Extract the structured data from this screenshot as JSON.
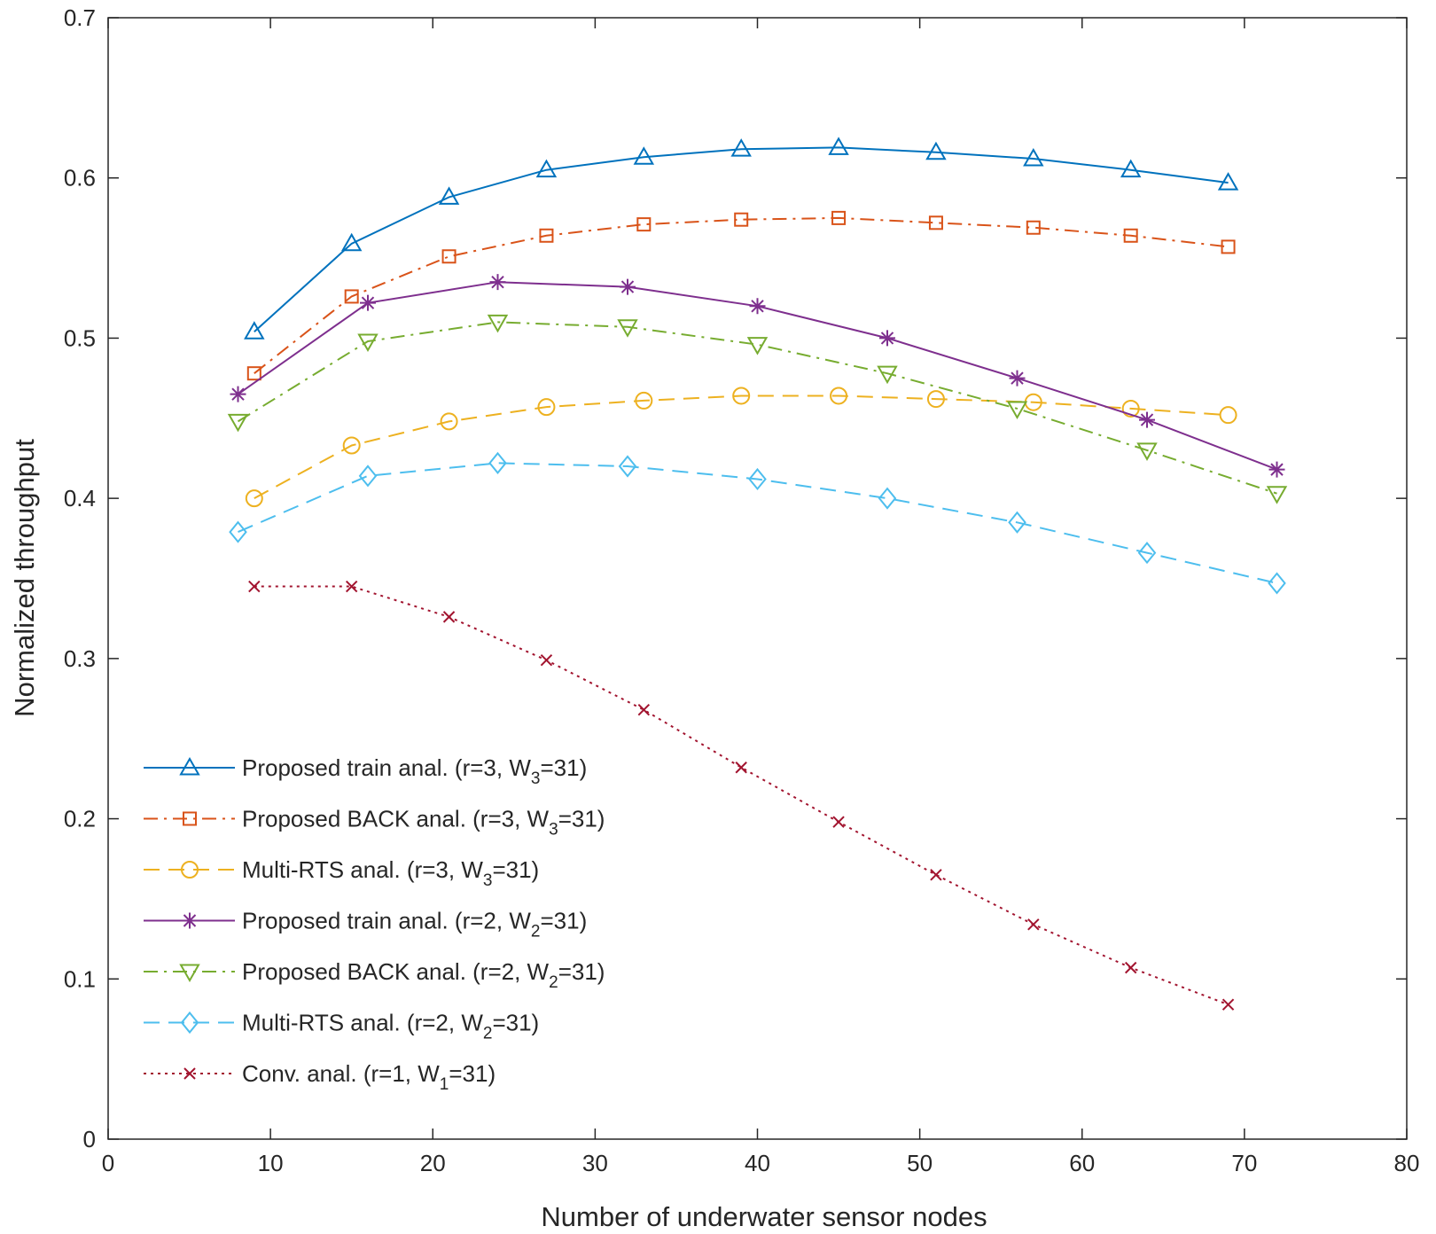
{
  "chart_data": {
    "type": "line",
    "title": "",
    "xlabel": "Number of underwater sensor nodes",
    "ylabel": "Normalized throughput",
    "xlim": [
      0,
      80
    ],
    "ylim": [
      0,
      0.7
    ],
    "xticks": [
      0,
      10,
      20,
      30,
      40,
      50,
      60,
      70,
      80
    ],
    "yticks": [
      0,
      0.1,
      0.2,
      0.3,
      0.4,
      0.5,
      0.6,
      0.7
    ],
    "xtick_labels": [
      "0",
      "10",
      "20",
      "30",
      "40",
      "50",
      "60",
      "70",
      "80"
    ],
    "ytick_labels": [
      "0",
      "0.1",
      "0.2",
      "0.3",
      "0.4",
      "0.5",
      "0.6",
      "0.7"
    ],
    "grid": false,
    "box": true,
    "legend_position": "bottom-left",
    "series": [
      {
        "name": "Proposed train anal. (r=3, W3=31)",
        "legend_text": {
          "main": "Proposed train anal. (r=3, W",
          "sub": "3",
          "tail": "=31)"
        },
        "color": "#0072bd",
        "line_style": "solid",
        "marker": "triangle-up",
        "x": [
          9,
          15,
          21,
          27,
          33,
          39,
          45,
          51,
          57,
          63,
          69
        ],
        "y": [
          0.504,
          0.559,
          0.588,
          0.605,
          0.613,
          0.618,
          0.619,
          0.616,
          0.612,
          0.605,
          0.597
        ]
      },
      {
        "name": "Proposed BACK anal. (r=3, W3=31)",
        "legend_text": {
          "main": "Proposed BACK anal. (r=3, W",
          "sub": "3",
          "tail": "=31)"
        },
        "color": "#d95319",
        "line_style": "dashdot",
        "marker": "square",
        "x": [
          9,
          15,
          21,
          27,
          33,
          39,
          45,
          51,
          57,
          63,
          69
        ],
        "y": [
          0.478,
          0.526,
          0.551,
          0.564,
          0.571,
          0.574,
          0.575,
          0.572,
          0.569,
          0.564,
          0.557
        ]
      },
      {
        "name": "Multi-RTS anal. (r=3, W3=31)",
        "legend_text": {
          "main": "Multi-RTS anal. (r=3, W",
          "sub": "3",
          "tail": "=31)"
        },
        "color": "#edb120",
        "line_style": "dashed",
        "marker": "circle",
        "x": [
          9,
          15,
          21,
          27,
          33,
          39,
          45,
          51,
          57,
          63,
          69
        ],
        "y": [
          0.4,
          0.433,
          0.448,
          0.457,
          0.461,
          0.464,
          0.464,
          0.462,
          0.46,
          0.456,
          0.452
        ]
      },
      {
        "name": "Proposed train anal. (r=2, W2=31)",
        "legend_text": {
          "main": "Proposed train anal. (r=2, W",
          "sub": "2",
          "tail": "=31)"
        },
        "color": "#7e2f8e",
        "line_style": "solid",
        "marker": "asterisk",
        "x": [
          8,
          16,
          24,
          32,
          40,
          48,
          56,
          64,
          72
        ],
        "y": [
          0.465,
          0.522,
          0.535,
          0.532,
          0.52,
          0.5,
          0.475,
          0.449,
          0.418
        ]
      },
      {
        "name": "Proposed BACK anal. (r=2, W2=31)",
        "legend_text": {
          "main": "Proposed BACK anal. (r=2, W",
          "sub": "2",
          "tail": "=31)"
        },
        "color": "#77ac30",
        "line_style": "dashdot",
        "marker": "triangle-down",
        "x": [
          8,
          16,
          24,
          32,
          40,
          48,
          56,
          64,
          72
        ],
        "y": [
          0.448,
          0.498,
          0.51,
          0.507,
          0.496,
          0.478,
          0.456,
          0.43,
          0.403
        ]
      },
      {
        "name": "Multi-RTS anal. (r=2, W2=31)",
        "legend_text": {
          "main": "Multi-RTS anal. (r=2, W",
          "sub": "2",
          "tail": "=31)"
        },
        "color": "#4dbeee",
        "line_style": "dashed",
        "marker": "diamond",
        "x": [
          8,
          16,
          24,
          32,
          40,
          48,
          56,
          64,
          72
        ],
        "y": [
          0.379,
          0.414,
          0.422,
          0.42,
          0.412,
          0.4,
          0.385,
          0.366,
          0.347
        ]
      },
      {
        "name": "Conv. anal. (r=1, W1=31)",
        "legend_text": {
          "main": "Conv. anal. (r=1, W",
          "sub": "1",
          "tail": "=31)"
        },
        "color": "#a2142f",
        "line_style": "dotted",
        "marker": "x",
        "x": [
          9,
          15,
          21,
          27,
          33,
          39,
          45,
          51,
          57,
          63,
          69
        ],
        "y": [
          0.345,
          0.345,
          0.326,
          0.299,
          0.268,
          0.232,
          0.198,
          0.165,
          0.134,
          0.107,
          0.084
        ]
      }
    ]
  }
}
